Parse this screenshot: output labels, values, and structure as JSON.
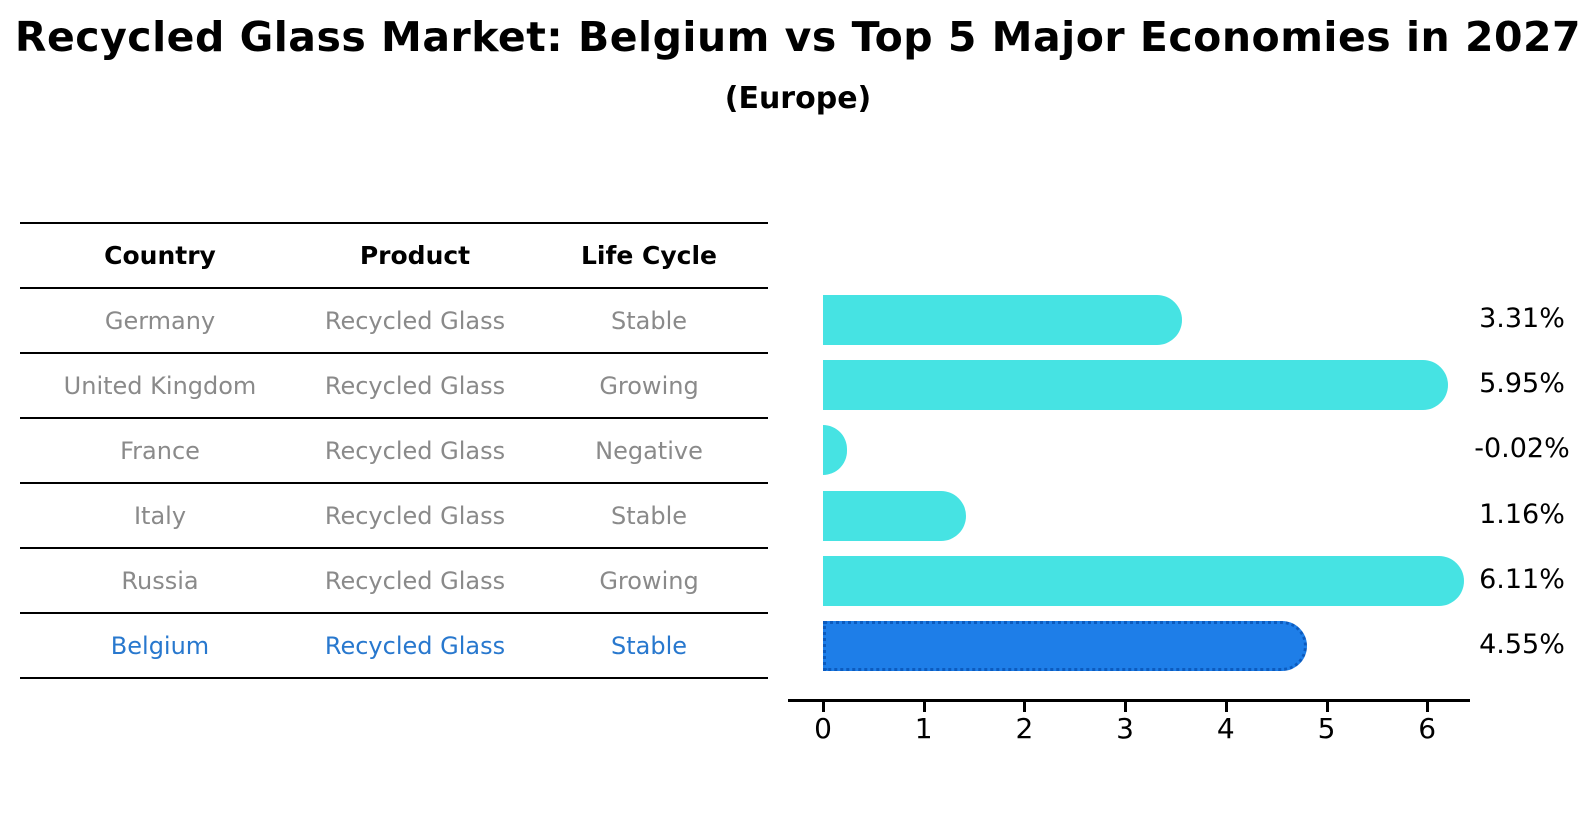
{
  "title": "Recycled Glass Market: Belgium vs Top 5 Major Economies in 2027",
  "subtitle": "(Europe)",
  "table": {
    "headers": [
      "Country",
      "Product",
      "Life Cycle"
    ],
    "rows": [
      {
        "country": "Germany",
        "product": "Recycled Glass",
        "life_cycle": "Stable",
        "highlight": false
      },
      {
        "country": "United Kingdom",
        "product": "Recycled Glass",
        "life_cycle": "Growing",
        "highlight": false
      },
      {
        "country": "France",
        "product": "Recycled Glass",
        "life_cycle": "Negative",
        "highlight": false
      },
      {
        "country": "Italy",
        "product": "Recycled Glass",
        "life_cycle": "Stable",
        "highlight": false
      },
      {
        "country": "Russia",
        "product": "Recycled Glass",
        "life_cycle": "Growing",
        "highlight": true
      },
      {
        "country": "Belgium",
        "product": "Recycled Glass",
        "life_cycle": "Stable",
        "highlight": true
      }
    ]
  },
  "chart_data": {
    "type": "bar",
    "orientation": "horizontal",
    "categories": [
      "Germany",
      "United Kingdom",
      "France",
      "Italy",
      "Russia",
      "Belgium"
    ],
    "values": [
      3.31,
      5.95,
      -0.02,
      1.16,
      6.11,
      4.55
    ],
    "value_labels": [
      "3.31%",
      "5.95%",
      "-0.02%",
      "1.16%",
      "6.11%",
      "4.55%"
    ],
    "highlight_category": "Belgium",
    "highlight_index": 5,
    "xticks": [
      "0",
      "1",
      "2",
      "3",
      "4",
      "5",
      "6"
    ],
    "xlim": [
      -0.35,
      6.5
    ],
    "xlabel": "",
    "ylabel": "",
    "grid": false,
    "legend": false,
    "bar_color": "#46E3E3",
    "highlight_bar_color": "#1E7EE8",
    "highlight_border_color": "#0C5BBE",
    "highlight_text_color": "#2878CE",
    "table_text_color": "#8a8a8a"
  }
}
